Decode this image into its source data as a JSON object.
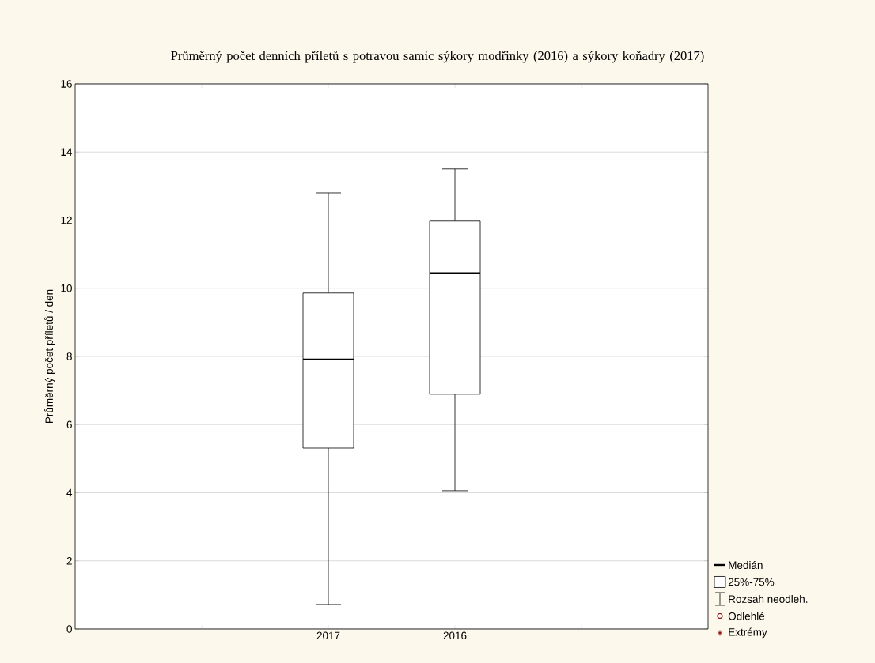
{
  "chart_data": {
    "type": "box",
    "title": "Průměrný počet denních příletů s potravou samic sýkory modřinky (2016) a sýkory koňadry (2017)",
    "ylabel": "Průměrný počet příletů / den",
    "categories": [
      "2017",
      "2016"
    ],
    "boxes": [
      {
        "low": 0.72,
        "q1": 5.31,
        "median": 7.91,
        "q3": 9.86,
        "high": 12.8
      },
      {
        "low": 4.06,
        "q1": 6.89,
        "median": 10.44,
        "q3": 11.97,
        "high": 13.5
      }
    ],
    "ylim": [
      0,
      16
    ],
    "yticks": [
      0,
      2,
      4,
      6,
      8,
      10,
      12,
      14,
      16
    ],
    "grid": "y",
    "annotations": [
      "Medián",
      "25%-75%",
      "Rozsah neodleh.",
      "Odlehlé",
      "Extrémy"
    ]
  }
}
